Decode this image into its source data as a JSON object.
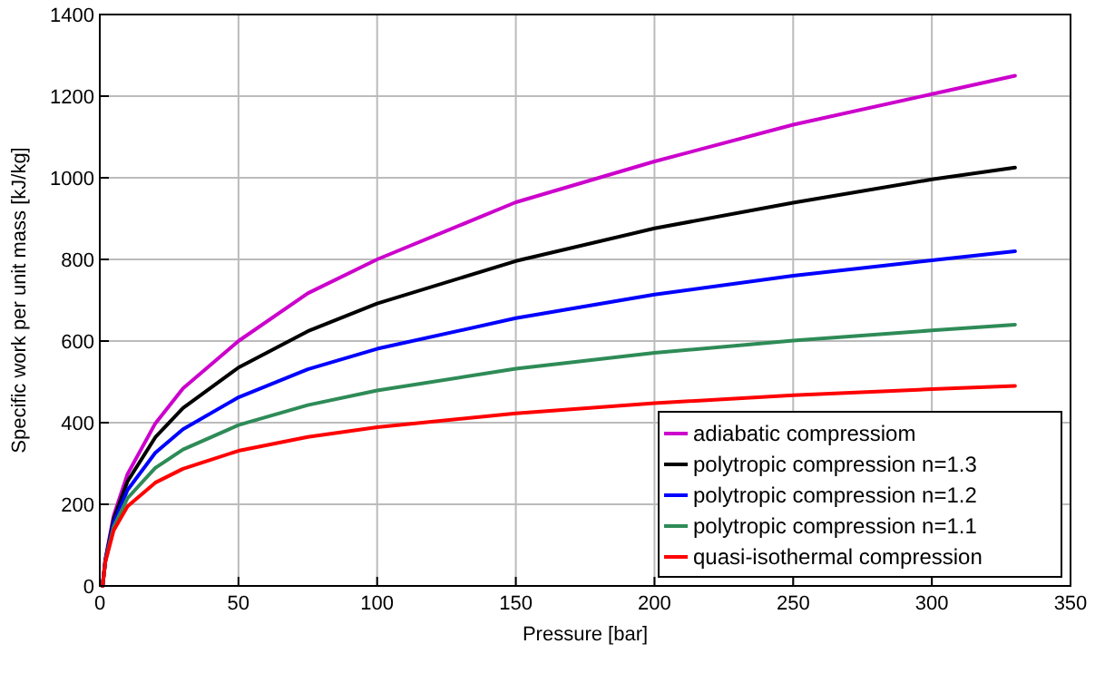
{
  "chart_data": {
    "type": "line",
    "xlabel": "Pressure [bar]",
    "ylabel": "Specific work per unit mass [kJ/kg]",
    "x": [
      1,
      2,
      5,
      10,
      20,
      30,
      50,
      75,
      100,
      150,
      200,
      250,
      300,
      330
    ],
    "xlim": [
      0,
      350
    ],
    "xticks": [
      0,
      50,
      100,
      150,
      200,
      250,
      300,
      350
    ],
    "ylim": [
      0,
      1400
    ],
    "yticks": [
      0,
      200,
      400,
      600,
      800,
      1000,
      1200,
      1400
    ],
    "grid": true,
    "legend": "bottom right",
    "marker": "none",
    "line_style": "solid",
    "series": [
      {
        "name": "adiabatic compressiom",
        "color": "#cc00cc",
        "values": [
          0,
          65,
          172,
          274,
          398,
          484,
          600,
          717,
          800,
          940,
          1040,
          1130,
          1205,
          1250
        ]
      },
      {
        "name": "polytropic compression n=1.3",
        "color": "#000000",
        "values": [
          0,
          63,
          164,
          256,
          364,
          436,
          535,
          624,
          692,
          796,
          876,
          939,
          996,
          1025
        ]
      },
      {
        "name": "polytropic compression n=1.2",
        "color": "#0000ff",
        "values": [
          0,
          61,
          155,
          235,
          326,
          384,
          462,
          531,
          581,
          656,
          714,
          760,
          798,
          820
        ]
      },
      {
        "name": "polytropic compression n=1.1",
        "color": "#2e8b57",
        "values": [
          0,
          60,
          145,
          215,
          289,
          334,
          394,
          443,
          479,
          532,
          571,
          601,
          626,
          640
        ]
      },
      {
        "name": "quasi-isothermal compression",
        "color": "#ff0000",
        "values": [
          0,
          59,
          136,
          195,
          253,
          287,
          331,
          365,
          389,
          423,
          448,
          467,
          482,
          490
        ]
      }
    ]
  }
}
